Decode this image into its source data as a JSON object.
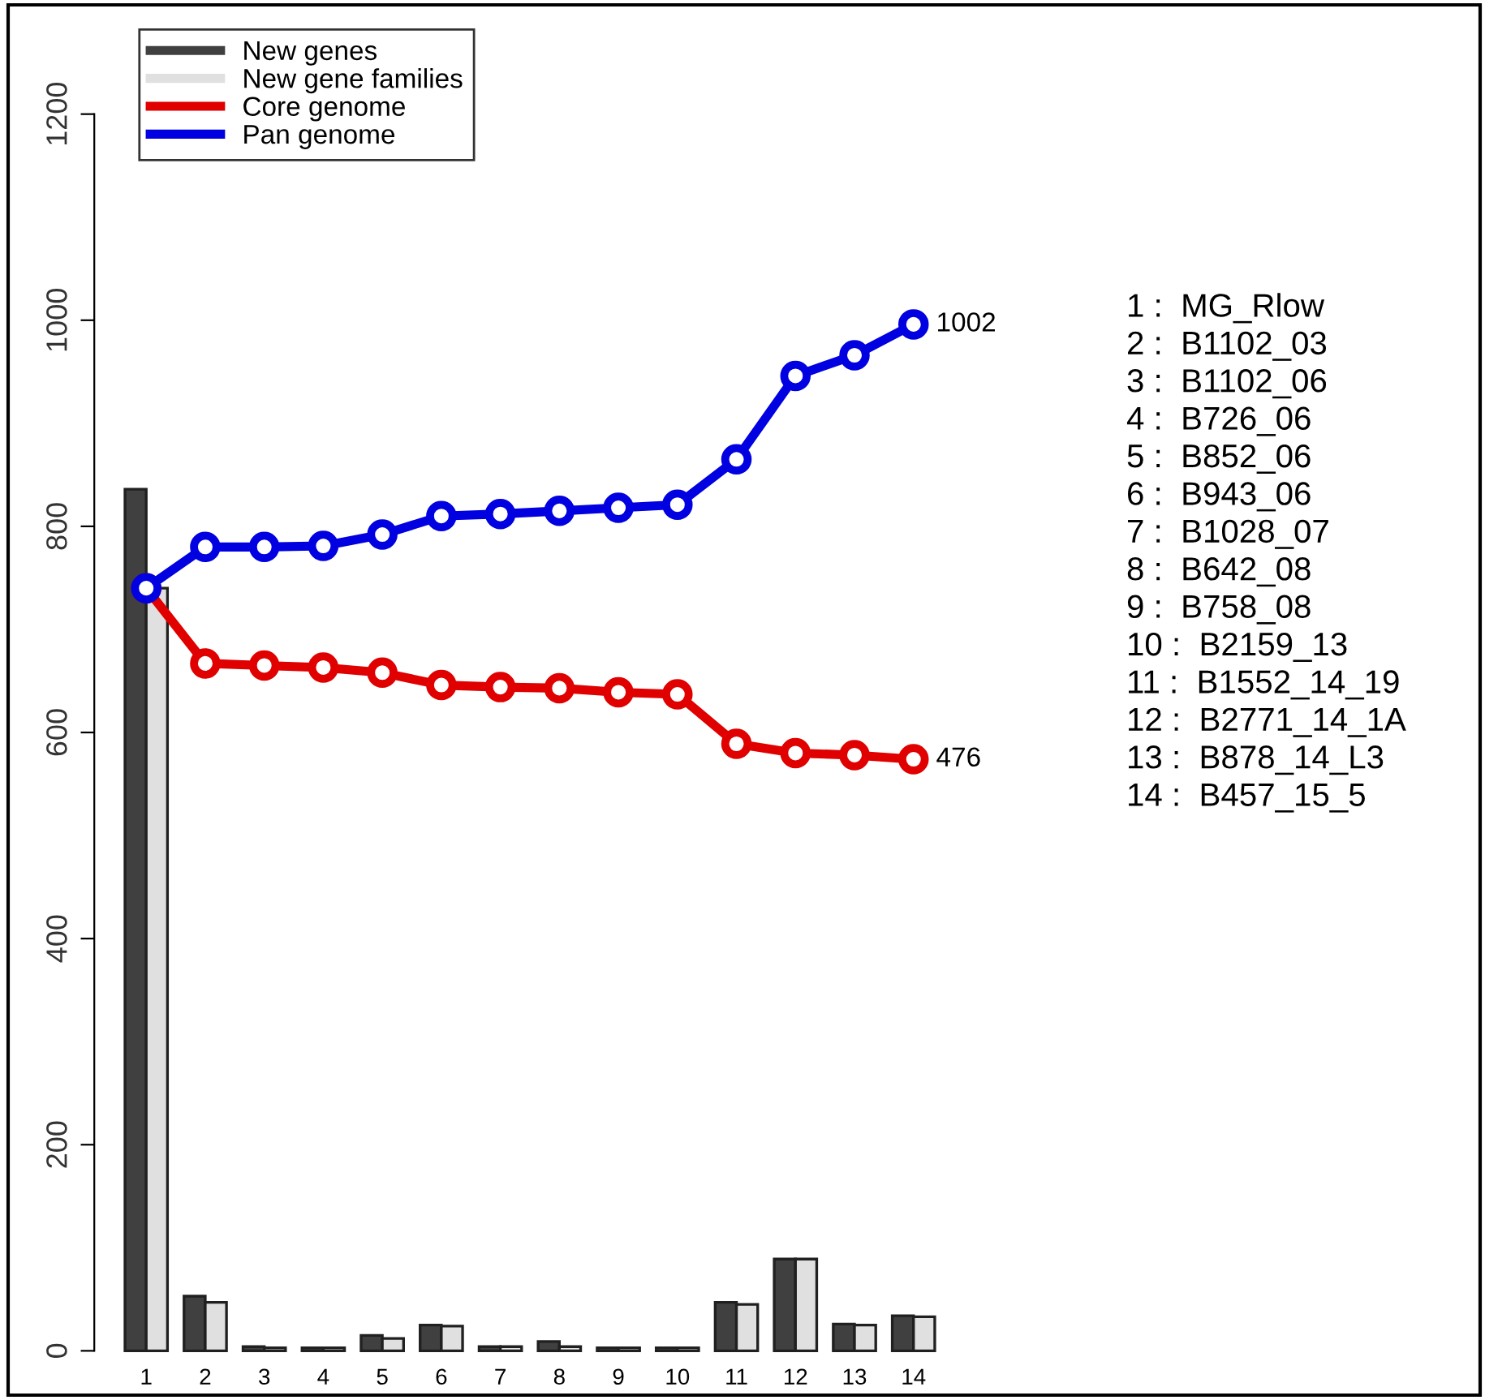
{
  "chart_data": {
    "type": "bar",
    "categories": [
      "1",
      "2",
      "3",
      "4",
      "5",
      "6",
      "7",
      "8",
      "9",
      "10",
      "11",
      "12",
      "13",
      "14"
    ],
    "series": [
      {
        "name": "New genes",
        "color": "#404040",
        "values": [
          836,
          53,
          4,
          3,
          15,
          25,
          4,
          9,
          3,
          3,
          47,
          89,
          26,
          34
        ]
      },
      {
        "name": "New gene families",
        "color": "#e0e0e0",
        "values": [
          740,
          47,
          3,
          3,
          12,
          24,
          4,
          4,
          3,
          3,
          45,
          89,
          25,
          33
        ]
      },
      {
        "name": "Core genome",
        "type": "line",
        "color": "#e00000",
        "values": [
          740,
          667,
          665,
          663,
          658,
          646,
          644,
          643,
          639,
          637,
          589,
          580,
          578,
          574
        ]
      },
      {
        "name": "Pan genome",
        "type": "line",
        "color": "#0000e0",
        "values": [
          740,
          780,
          780,
          781,
          792,
          810,
          812,
          815,
          818,
          821,
          865,
          946,
          966,
          996
        ]
      }
    ],
    "ylim": [
      -43,
      1306
    ],
    "yticks": [
      0,
      200,
      400,
      600,
      800,
      1000,
      1200
    ],
    "legend": "top left",
    "marker": "circle",
    "line_style": "solid",
    "grid": false,
    "annotations": [
      {
        "text": "1002",
        "x": "14",
        "y": 996
      },
      {
        "text": "476",
        "x": "14",
        "y": 574
      },
      "1 :  MG_Rlow",
      "2 :  B1102_03",
      "3 :  B1102_06",
      "4 :  B726_06",
      "5 :  B852_06",
      "6 :  B943_06",
      "7 :  B1028_07",
      "8 :  B642_08",
      "9 :  B758_08",
      "10 :  B2159_13",
      "11 :  B1552_14_19",
      "12 :  B2771_14_1A",
      "13 :  B878_14_L3",
      "14 :  B457_15_5"
    ]
  }
}
